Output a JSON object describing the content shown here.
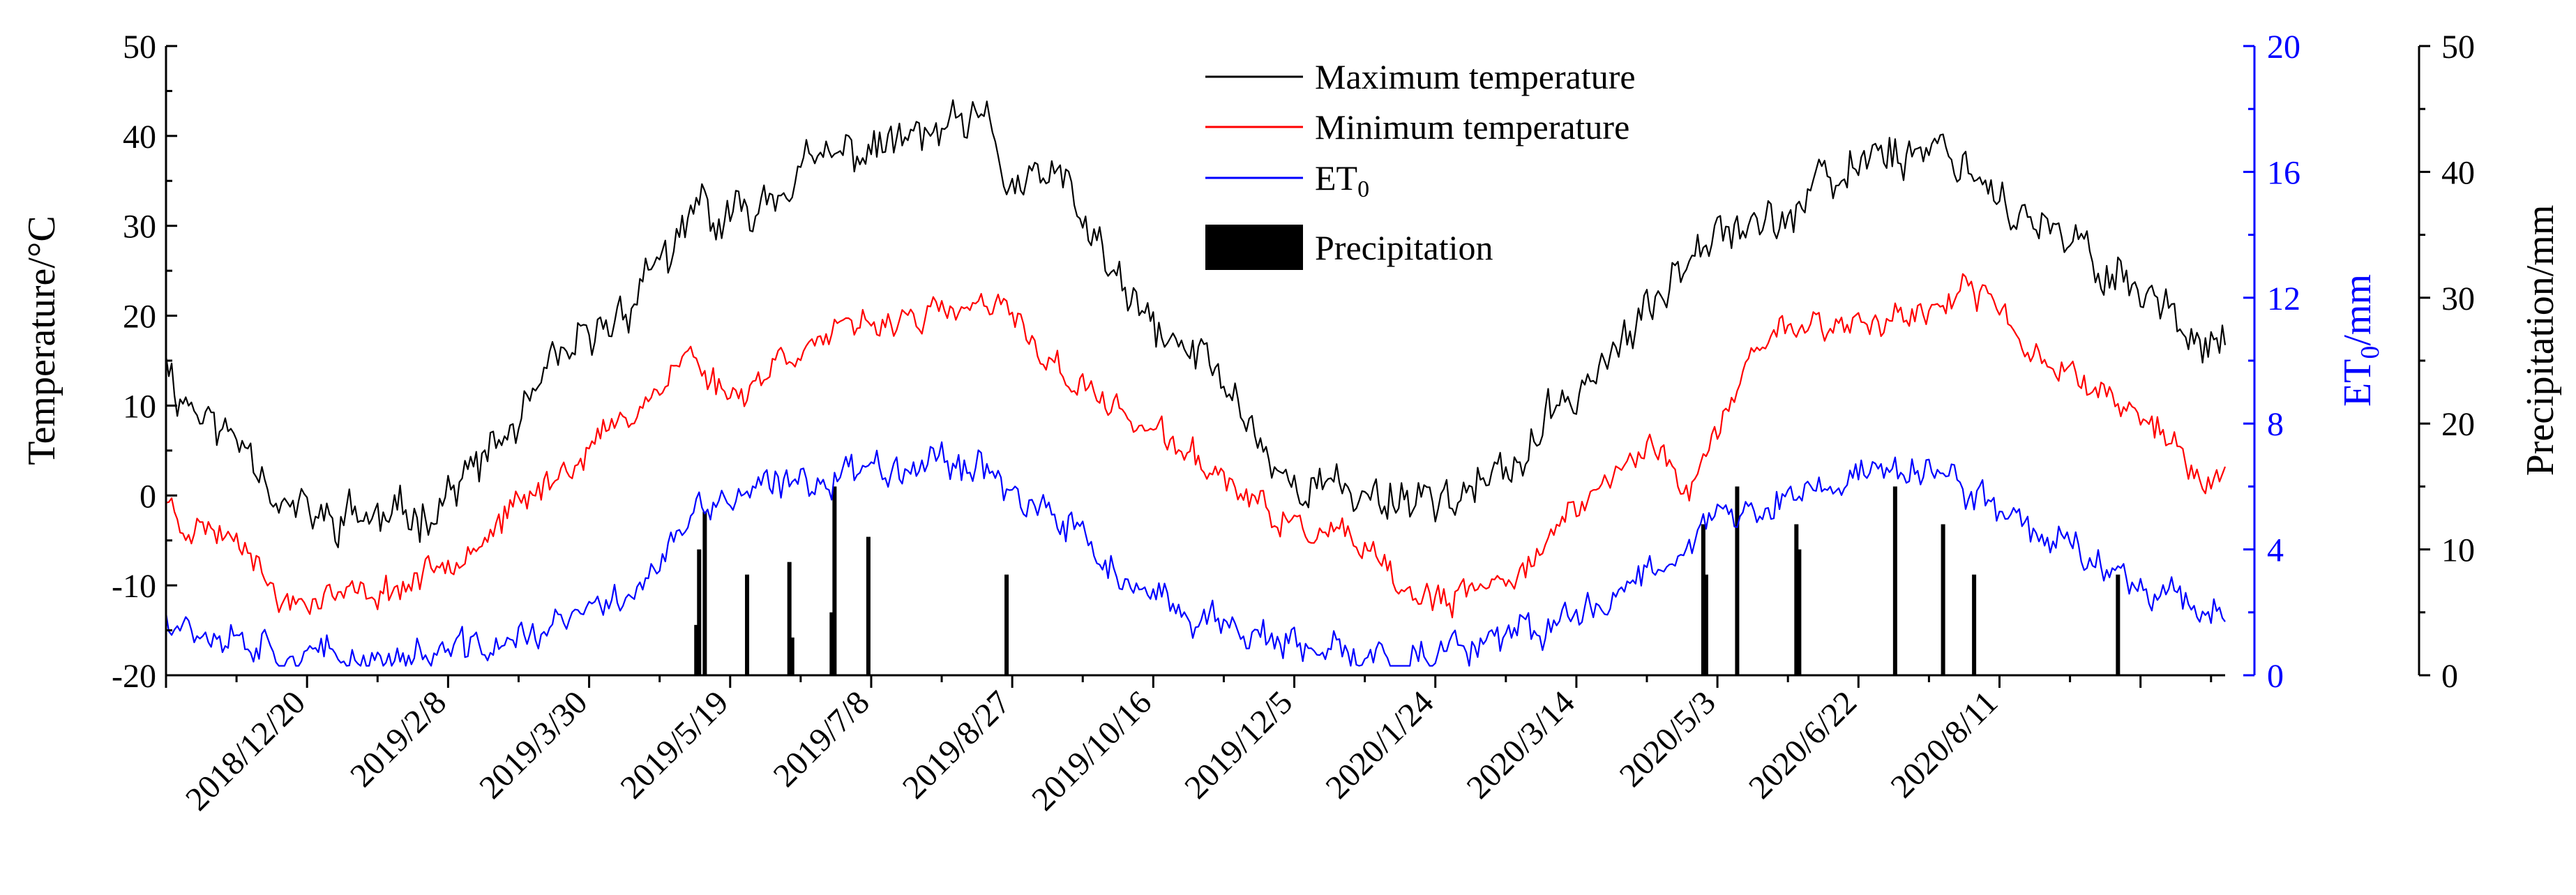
{
  "colors": {
    "tmax": "#000000",
    "tmin": "#ff0000",
    "et0": "#0000ff",
    "precip": "#000000",
    "axis": "#000000",
    "et0_axis": "#0000ff"
  },
  "chart_data": {
    "type": "line",
    "title": "",
    "xlabel": "",
    "x_ticks": [
      "2018/12/20",
      "2019/2/8",
      "2019/3/30",
      "2019/5/19",
      "2019/7/8",
      "2019/8/27",
      "2019/10/16",
      "2019/12/5",
      "2020/1/24",
      "2020/3/14",
      "2020/5/3",
      "2020/6/22",
      "2020/8/11"
    ],
    "x_range_days": [
      0,
      730
    ],
    "axes": {
      "temperature": {
        "label": "Temperature/°C",
        "ylim": [
          -20,
          50
        ],
        "ticks": [
          "-20",
          "-10",
          "0",
          "10",
          "20",
          "30",
          "40",
          "50"
        ]
      },
      "et0": {
        "label_main": "ET",
        "label_sub": "0",
        "label_unit": "/mm",
        "ylim": [
          0,
          20
        ],
        "ticks": [
          "0",
          "4",
          "8",
          "12",
          "16",
          "20"
        ]
      },
      "precipitation": {
        "label": "Precipitation/mm",
        "ylim": [
          0,
          50
        ],
        "ticks": [
          "0",
          "10",
          "20",
          "30",
          "40",
          "50"
        ]
      }
    },
    "legend": {
      "position": "top-center",
      "tmax": "Maximum temperature",
      "tmin": "Minimum temperature",
      "et0_main": "ET",
      "et0_sub": "0",
      "precip": "Precipitation"
    },
    "series": [
      {
        "name": "Maximum temperature",
        "axis": "temperature",
        "anchors": [
          [
            0,
            17
          ],
          [
            3,
            12
          ],
          [
            10,
            10
          ],
          [
            20,
            7
          ],
          [
            30,
            6
          ],
          [
            35,
            3
          ],
          [
            40,
            -1
          ],
          [
            50,
            -2
          ],
          [
            58,
            -3
          ],
          [
            65,
            -2
          ],
          [
            80,
            -3
          ],
          [
            95,
            -1
          ],
          [
            110,
            3
          ],
          [
            125,
            8
          ],
          [
            140,
            15
          ],
          [
            150,
            17
          ],
          [
            160,
            20
          ],
          [
            170,
            24
          ],
          [
            175,
            28
          ],
          [
            180,
            25
          ],
          [
            185,
            30
          ],
          [
            190,
            33
          ],
          [
            195,
            30
          ],
          [
            205,
            31
          ],
          [
            215,
            34
          ],
          [
            225,
            36
          ],
          [
            240,
            38
          ],
          [
            255,
            39
          ],
          [
            270,
            40
          ],
          [
            285,
            41
          ],
          [
            292,
            41
          ],
          [
            298,
            35
          ],
          [
            305,
            34
          ],
          [
            315,
            36
          ],
          [
            330,
            28
          ],
          [
            340,
            22
          ],
          [
            355,
            17
          ],
          [
            370,
            15
          ],
          [
            385,
            8
          ],
          [
            395,
            2
          ],
          [
            410,
            1
          ],
          [
            425,
            0
          ],
          [
            440,
            0
          ],
          [
            455,
            0
          ],
          [
            470,
            1
          ],
          [
            480,
            4
          ],
          [
            490,
            8
          ],
          [
            500,
            12
          ],
          [
            510,
            15
          ],
          [
            520,
            18
          ],
          [
            530,
            22
          ],
          [
            540,
            28
          ],
          [
            550,
            31
          ],
          [
            565,
            30
          ],
          [
            575,
            31
          ],
          [
            585,
            34
          ],
          [
            595,
            35
          ],
          [
            605,
            39
          ],
          [
            615,
            38
          ],
          [
            625,
            39
          ],
          [
            635,
            38
          ],
          [
            645,
            35
          ],
          [
            660,
            30
          ],
          [
            675,
            28
          ],
          [
            690,
            25
          ],
          [
            705,
            22
          ],
          [
            715,
            19
          ],
          [
            722,
            18
          ],
          [
            730,
            17
          ]
        ],
        "noise": 4.0
      },
      {
        "name": "Minimum temperature",
        "axis": "temperature",
        "anchors": [
          [
            0,
            0
          ],
          [
            5,
            -3
          ],
          [
            20,
            -4
          ],
          [
            30,
            -5
          ],
          [
            35,
            -9
          ],
          [
            40,
            -12
          ],
          [
            55,
            -11
          ],
          [
            70,
            -11
          ],
          [
            85,
            -10
          ],
          [
            100,
            -7
          ],
          [
            115,
            -4
          ],
          [
            130,
            0
          ],
          [
            145,
            4
          ],
          [
            160,
            8
          ],
          [
            175,
            12
          ],
          [
            185,
            16
          ],
          [
            190,
            14
          ],
          [
            200,
            11
          ],
          [
            210,
            13
          ],
          [
            220,
            16
          ],
          [
            240,
            18
          ],
          [
            260,
            20
          ],
          [
            275,
            20
          ],
          [
            290,
            21
          ],
          [
            300,
            20
          ],
          [
            310,
            16
          ],
          [
            320,
            13
          ],
          [
            330,
            11
          ],
          [
            345,
            8
          ],
          [
            360,
            5
          ],
          [
            375,
            2
          ],
          [
            390,
            -2
          ],
          [
            405,
            -4
          ],
          [
            420,
            -5
          ],
          [
            430,
            -8
          ],
          [
            440,
            -11
          ],
          [
            455,
            -12
          ],
          [
            470,
            -10
          ],
          [
            480,
            -8
          ],
          [
            490,
            -5
          ],
          [
            505,
            0
          ],
          [
            520,
            4
          ],
          [
            530,
            6
          ],
          [
            535,
            3
          ],
          [
            540,
            0
          ],
          [
            550,
            7
          ],
          [
            560,
            14
          ],
          [
            570,
            19
          ],
          [
            585,
            19
          ],
          [
            600,
            19
          ],
          [
            615,
            20
          ],
          [
            630,
            21
          ],
          [
            645,
            23
          ],
          [
            660,
            16
          ],
          [
            670,
            15
          ],
          [
            685,
            12
          ],
          [
            700,
            9
          ],
          [
            715,
            5
          ],
          [
            722,
            0
          ],
          [
            726,
            1
          ],
          [
            730,
            3
          ]
        ],
        "noise": 2.6
      },
      {
        "name": "ET0",
        "axis": "et0",
        "anchors": [
          [
            0,
            2.1
          ],
          [
            10,
            1.5
          ],
          [
            30,
            1.2
          ],
          [
            45,
            0.6
          ],
          [
            60,
            0.5
          ],
          [
            90,
            0.6
          ],
          [
            120,
            1.0
          ],
          [
            140,
            1.6
          ],
          [
            160,
            2.4
          ],
          [
            175,
            3.5
          ],
          [
            185,
            4.8
          ],
          [
            195,
            5.5
          ],
          [
            210,
            5.8
          ],
          [
            220,
            6.0
          ],
          [
            240,
            6.5
          ],
          [
            260,
            6.8
          ],
          [
            280,
            6.9
          ],
          [
            295,
            6.5
          ],
          [
            305,
            5.3
          ],
          [
            320,
            4.7
          ],
          [
            335,
            3.5
          ],
          [
            345,
            2.4
          ],
          [
            360,
            2.0
          ],
          [
            380,
            1.6
          ],
          [
            395,
            0.9
          ],
          [
            410,
            0.6
          ],
          [
            430,
            0.6
          ],
          [
            450,
            0.7
          ],
          [
            470,
            0.9
          ],
          [
            490,
            1.5
          ],
          [
            505,
            2.2
          ],
          [
            520,
            3.0
          ],
          [
            535,
            4.0
          ],
          [
            545,
            4.9
          ],
          [
            560,
            5.0
          ],
          [
            575,
            5.6
          ],
          [
            590,
            6.0
          ],
          [
            605,
            6.6
          ],
          [
            620,
            6.5
          ],
          [
            630,
            6.3
          ],
          [
            640,
            5.8
          ],
          [
            655,
            5.1
          ],
          [
            670,
            4.3
          ],
          [
            685,
            3.6
          ],
          [
            700,
            3.0
          ],
          [
            715,
            2.5
          ],
          [
            725,
            2.1
          ],
          [
            730,
            2.0
          ]
        ],
        "noise": 0.9
      }
    ],
    "precipitation_bars": {
      "axis": "precipitation",
      "day": [
        188,
        189,
        191,
        206,
        221,
        222,
        236,
        237,
        249,
        298,
        545,
        546,
        557,
        578,
        579,
        613,
        630,
        641,
        692
      ],
      "value": [
        4,
        10,
        13,
        8,
        9,
        3,
        5,
        15,
        11,
        8,
        12,
        8,
        15,
        12,
        10,
        15,
        12,
        8,
        8
      ]
    }
  }
}
